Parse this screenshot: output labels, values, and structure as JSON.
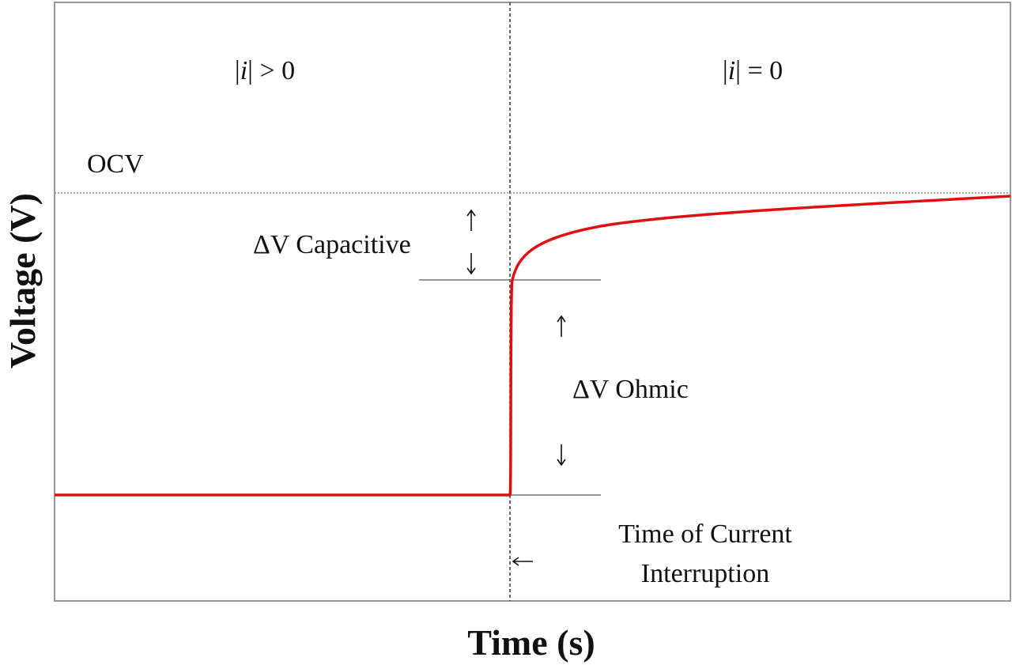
{
  "regions": [
    {
      "left": "|",
      "symbol": "i",
      "right": "| > 0"
    },
    {
      "left": "|",
      "symbol": "i",
      "right": "| = 0"
    }
  ],
  "labels": {
    "ocv": "OCV",
    "capacitive": "ΔV Capacitive",
    "ohmic": "ΔV Ohmic",
    "interruption": [
      "Time of Current",
      "Interruption"
    ]
  },
  "axes": {
    "y": "Voltage (V)",
    "x": "Time (s)"
  }
}
